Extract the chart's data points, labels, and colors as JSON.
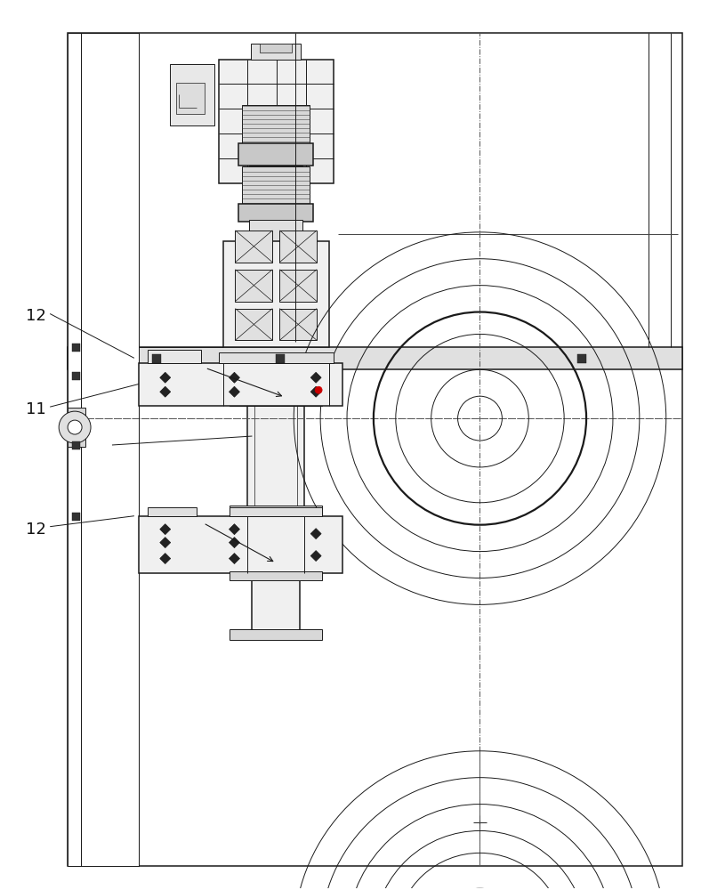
{
  "bg_color": "#ffffff",
  "line_color": "#1a1a1a",
  "label_color": "#111111",
  "fig_width": 7.88,
  "fig_height": 10.0,
  "labels": [
    "12",
    "11",
    "12"
  ],
  "lw_thin": 0.7,
  "lw_med": 1.1,
  "lw_thick": 1.6
}
